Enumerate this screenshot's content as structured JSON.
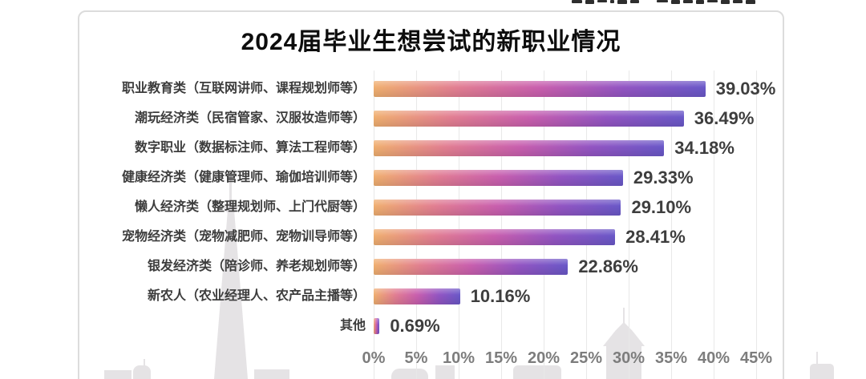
{
  "title": "2024届毕业生想尝试的新职业情况",
  "chart_data": {
    "type": "bar",
    "orientation": "horizontal",
    "title": "2024届毕业生想尝试的新职业情况",
    "categories": [
      "职业教育类（互联网讲师、课程规划师等）",
      "潮玩经济类（民宿管家、汉服妆造师等）",
      "数字职业（数据标注师、算法工程师等）",
      "健康经济类（健康管理师、瑜伽培训师等）",
      "懒人经济类（整理规划师、上门代厨等）",
      "宠物经济类（宠物减肥师、宠物训导师等）",
      "银发经济类（陪诊师、养老规划师等）",
      "新农人（农业经理人、农产品主播等）",
      "其他"
    ],
    "values": [
      39.03,
      36.49,
      34.18,
      29.33,
      29.1,
      28.41,
      22.86,
      10.16,
      0.69
    ],
    "value_labels": [
      "39.03%",
      "36.49%",
      "34.18%",
      "29.33%",
      "29.10%",
      "28.41%",
      "22.86%",
      "10.16%",
      "0.69%"
    ],
    "x_ticks": [
      "0%",
      "5%",
      "10%",
      "15%",
      "20%",
      "25%",
      "30%",
      "35%",
      "40%",
      "45%"
    ],
    "xlim": [
      0,
      45
    ],
    "grid": true,
    "legend": false,
    "bar_gradient": [
      "#F0AF70",
      "#E27E92",
      "#C95FAE",
      "#9355C3",
      "#6A58C8"
    ]
  },
  "colors": {
    "grid_line": "#E8E8E8",
    "tick_text": "#7D7D7D",
    "category_text": "#3C3C3C",
    "value_text": "#3E3E3E",
    "title_text": "#0D0D0D",
    "card_border": "#DCDCDC",
    "watermark": "#E5E3E5"
  },
  "decor": {
    "skyline_watermark": [
      "tv-tower-silhouette",
      "spire-building-silhouette",
      "building-silhouettes"
    ],
    "top_edge": "cropped-source-text"
  }
}
